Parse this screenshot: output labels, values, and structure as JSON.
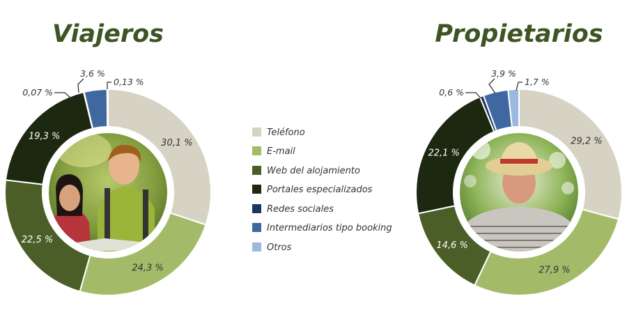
{
  "colors": {
    "Teléfono": "#d6d3c4",
    "E-mail": "#a3bb69",
    "Web del alojamiento": "#4b5e28",
    "Portales especializados": "#1c2810",
    "Redes sociales": "#1e3560",
    "Intermediarios tipo booking": "#3f68a1",
    "Otros": "#9db8de",
    "title": "#3d5423"
  },
  "legend": {
    "items": [
      "Teléfono",
      "E-mail",
      "Web del alojamiento",
      "Portales especializados",
      "Redes sociales",
      "Intermediarios tipo booking",
      "Otros"
    ]
  },
  "chart_data": [
    {
      "type": "pie",
      "donut": true,
      "title": "Viajeros",
      "photo": "young-couple-hiking-photo",
      "slices": [
        {
          "name": "Teléfono",
          "value": 30.1,
          "label": "30,1 %"
        },
        {
          "name": "E-mail",
          "value": 24.3,
          "label": "24,3 %"
        },
        {
          "name": "Web del alojamiento",
          "value": 22.5,
          "label": "22,5 %"
        },
        {
          "name": "Portales especializados",
          "value": 19.3,
          "label": "19,3 %"
        },
        {
          "name": "Redes sociales",
          "value": 0.07,
          "label": "0,07 %"
        },
        {
          "name": "Intermediarios tipo booking",
          "value": 3.6,
          "label": "3,6 %"
        },
        {
          "name": "Otros",
          "value": 0.13,
          "label": "0,13 %"
        }
      ]
    },
    {
      "type": "pie",
      "donut": true,
      "title": "Propietarios",
      "photo": "older-man-straw-hat-photo",
      "slices": [
        {
          "name": "Teléfono",
          "value": 29.2,
          "label": "29,2 %"
        },
        {
          "name": "E-mail",
          "value": 27.9,
          "label": "27,9 %"
        },
        {
          "name": "Web del alojamiento",
          "value": 14.6,
          "label": "14,6 %"
        },
        {
          "name": "Portales especializados",
          "value": 22.1,
          "label": "22,1 %"
        },
        {
          "name": "Redes sociales",
          "value": 0.6,
          "label": "0,6 %"
        },
        {
          "name": "Intermediarios tipo booking",
          "value": 3.9,
          "label": "3,9 %"
        },
        {
          "name": "Otros",
          "value": 1.7,
          "label": "1,7 %"
        }
      ]
    }
  ]
}
